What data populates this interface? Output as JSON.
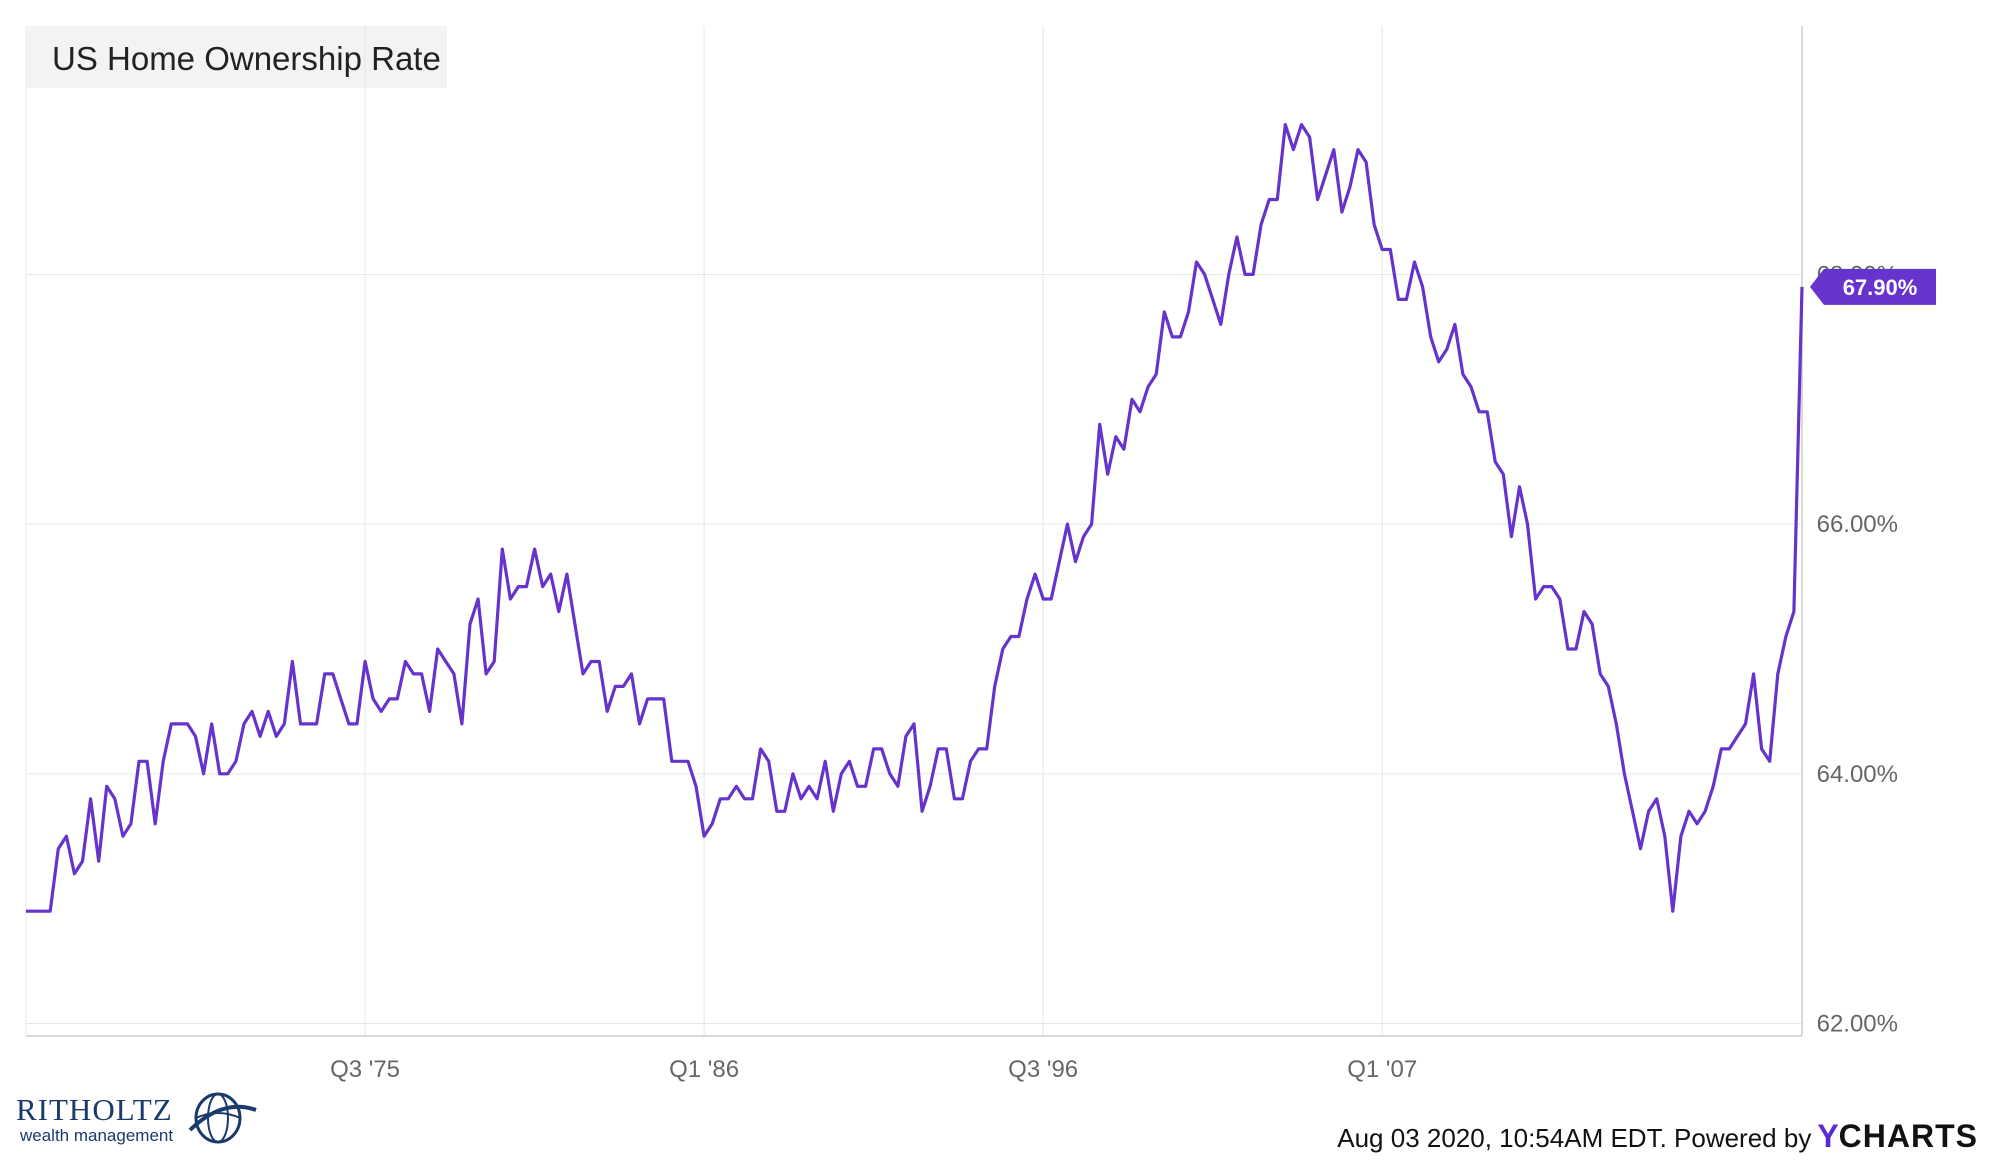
{
  "chart_data": {
    "type": "line",
    "title": "US Home Ownership Rate",
    "xlabel": "",
    "ylabel": "",
    "x_start": "Q1 '65",
    "x_end": "Q2 '20",
    "x_ticks": [
      "Q3 '75",
      "Q1 '86",
      "Q3 '96",
      "Q1 '07"
    ],
    "y_ticks": [
      "62.00%",
      "64.00%",
      "66.00%",
      "68.00%"
    ],
    "ylim": [
      61.9,
      69.99
    ],
    "grid": true,
    "line_color": "#6633cc",
    "last_value_label": "67.90%",
    "series": [
      {
        "values": [
          62.9,
          62.9,
          62.9,
          62.9,
          63.4,
          63.5,
          63.2,
          63.3,
          63.8,
          63.3,
          63.9,
          63.8,
          63.5,
          63.6,
          64.1,
          64.1,
          63.6,
          64.1,
          64.4,
          64.4,
          64.4,
          64.3,
          64.0,
          64.4,
          64.0,
          64.0,
          64.1,
          64.4,
          64.5,
          64.3,
          64.5,
          64.3,
          64.4,
          64.9,
          64.4,
          64.4,
          64.4,
          64.8,
          64.8,
          64.6,
          64.4,
          64.4,
          64.9,
          64.6,
          64.5,
          64.6,
          64.6,
          64.9,
          64.8,
          64.8,
          64.5,
          65.0,
          64.9,
          64.8,
          64.4,
          65.2,
          65.4,
          64.8,
          64.9,
          65.8,
          65.4,
          65.5,
          65.5,
          65.8,
          65.5,
          65.6,
          65.3,
          65.6,
          65.2,
          64.8,
          64.9,
          64.9,
          64.5,
          64.7,
          64.7,
          64.8,
          64.4,
          64.6,
          64.6,
          64.6,
          64.1,
          64.1,
          64.1,
          63.9,
          63.5,
          63.6,
          63.8,
          63.8,
          63.9,
          63.8,
          63.8,
          64.2,
          64.1,
          63.7,
          63.7,
          64.0,
          63.8,
          63.9,
          63.8,
          64.1,
          63.7,
          64.0,
          64.1,
          63.9,
          63.9,
          64.2,
          64.2,
          64.0,
          63.9,
          64.3,
          64.4,
          63.7,
          63.9,
          64.2,
          64.2,
          63.8,
          63.8,
          64.1,
          64.2,
          64.2,
          64.7,
          65.0,
          65.1,
          65.1,
          65.4,
          65.6,
          65.4,
          65.4,
          65.7,
          66.0,
          65.7,
          65.9,
          66.0,
          66.8,
          66.4,
          66.7,
          66.6,
          67.0,
          66.9,
          67.1,
          67.2,
          67.7,
          67.5,
          67.5,
          67.7,
          68.1,
          68.0,
          67.8,
          67.6,
          68.0,
          68.3,
          68.0,
          68.0,
          68.4,
          68.6,
          68.6,
          69.2,
          69.0,
          69.2,
          69.1,
          68.6,
          68.8,
          69.0,
          68.5,
          68.7,
          69.0,
          68.9,
          68.4,
          68.2,
          68.2,
          67.8,
          67.8,
          68.1,
          67.9,
          67.5,
          67.3,
          67.4,
          67.6,
          67.2,
          67.1,
          66.9,
          66.9,
          66.5,
          66.4,
          65.9,
          66.3,
          66.0,
          65.4,
          65.5,
          65.5,
          65.4,
          65.0,
          65.0,
          65.3,
          65.2,
          64.8,
          64.7,
          64.4,
          64.0,
          63.7,
          63.4,
          63.7,
          63.8,
          63.5,
          62.9,
          63.5,
          63.7,
          63.6,
          63.7,
          63.9,
          64.2,
          64.2,
          64.3,
          64.4,
          64.8,
          64.2,
          64.1,
          64.8,
          65.1,
          65.3,
          67.9
        ]
      }
    ]
  },
  "brand": {
    "logo_name": "RITHOLTZ",
    "logo_sub": "wealth management",
    "footer_text": "Aug 03 2020, 10:54AM EDT. Powered by",
    "footer_brand_y": "Y",
    "footer_brand_rest": "CHARTS",
    "logo_color": "#1a3a6b",
    "ycharts_color": "#5b2bd1"
  }
}
